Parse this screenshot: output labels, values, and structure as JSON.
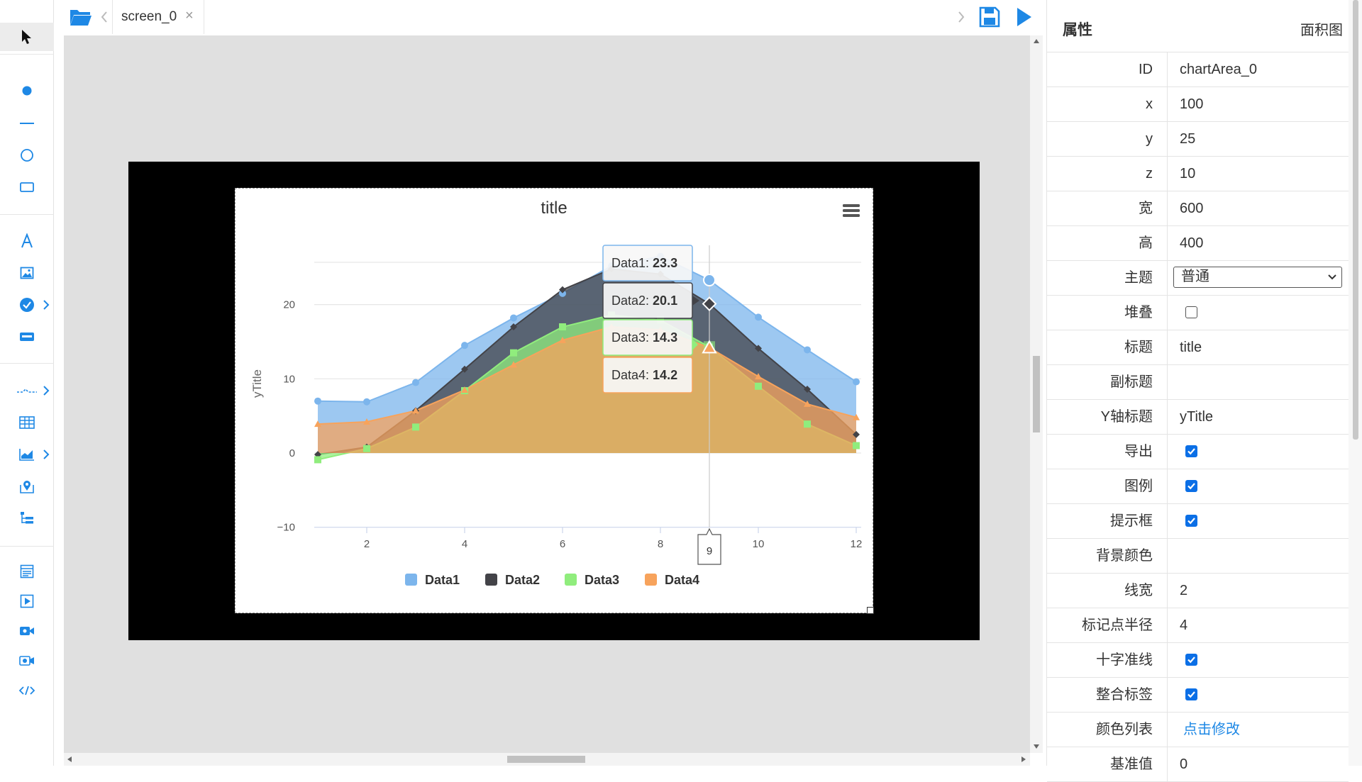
{
  "tab": {
    "label": "screen_0"
  },
  "props": {
    "title": "属性",
    "chart_type": "面积图",
    "rows": [
      {
        "label": "ID",
        "value": "chartArea_0"
      },
      {
        "label": "x",
        "value": "100"
      },
      {
        "label": "y",
        "value": "25"
      },
      {
        "label": "z",
        "value": "10"
      },
      {
        "label": "宽",
        "value": "600"
      },
      {
        "label": "高",
        "value": "400"
      },
      {
        "label": "主题",
        "value": "普通"
      },
      {
        "label": "堆叠",
        "checked": false
      },
      {
        "label": "标题",
        "value": "title"
      },
      {
        "label": "副标题",
        "value": ""
      },
      {
        "label": "Y轴标题",
        "value": "yTitle"
      },
      {
        "label": "导出",
        "checked": true
      },
      {
        "label": "图例",
        "checked": true
      },
      {
        "label": "提示框",
        "checked": true
      },
      {
        "label": "背景颜色",
        "value": ""
      },
      {
        "label": "线宽",
        "value": "2"
      },
      {
        "label": "标记点半径",
        "value": "4"
      },
      {
        "label": "十字准线",
        "checked": true
      },
      {
        "label": "整合标签",
        "checked": true
      },
      {
        "label": "颜色列表",
        "value": "点击修改"
      },
      {
        "label": "基准值",
        "value": "0"
      }
    ]
  },
  "chart_data": {
    "type": "area",
    "title": "title",
    "ylabel": "yTitle",
    "xlabel": "",
    "x": [
      1,
      2,
      3,
      4,
      5,
      6,
      7,
      8,
      9,
      10,
      11,
      12
    ],
    "xticks": [
      "2",
      "4",
      "6",
      "8",
      "10",
      "12"
    ],
    "yticks": [
      "20",
      "10",
      "0",
      "−10"
    ],
    "ylim": [
      -10,
      25
    ],
    "crosshair_x": "9",
    "series": [
      {
        "name": "Data1",
        "color": "#7cb5ec",
        "values": [
          7.0,
          6.9,
          9.5,
          14.5,
          18.2,
          21.5,
          25.2,
          26.5,
          23.3,
          18.3,
          13.9,
          9.6
        ]
      },
      {
        "name": "Data2",
        "color": "#434348",
        "values": [
          -0.2,
          0.8,
          5.7,
          11.3,
          17.0,
          22.0,
          24.8,
          24.1,
          20.1,
          14.1,
          8.6,
          2.5
        ]
      },
      {
        "name": "Data3",
        "color": "#90ed7d",
        "values": [
          -0.9,
          0.6,
          3.5,
          8.4,
          13.5,
          17.0,
          18.6,
          17.9,
          14.3,
          9.0,
          3.9,
          1.0
        ]
      },
      {
        "name": "Data4",
        "color": "#f7a35c",
        "values": [
          3.9,
          4.2,
          5.7,
          8.5,
          11.9,
          15.2,
          17.0,
          16.6,
          14.2,
          10.3,
          6.6,
          4.8
        ]
      }
    ],
    "tooltip": [
      {
        "label": "Data1",
        "value": "23.3"
      },
      {
        "label": "Data2",
        "value": "20.1"
      },
      {
        "label": "Data3",
        "value": "14.3"
      },
      {
        "label": "Data4",
        "value": "14.2"
      }
    ]
  }
}
